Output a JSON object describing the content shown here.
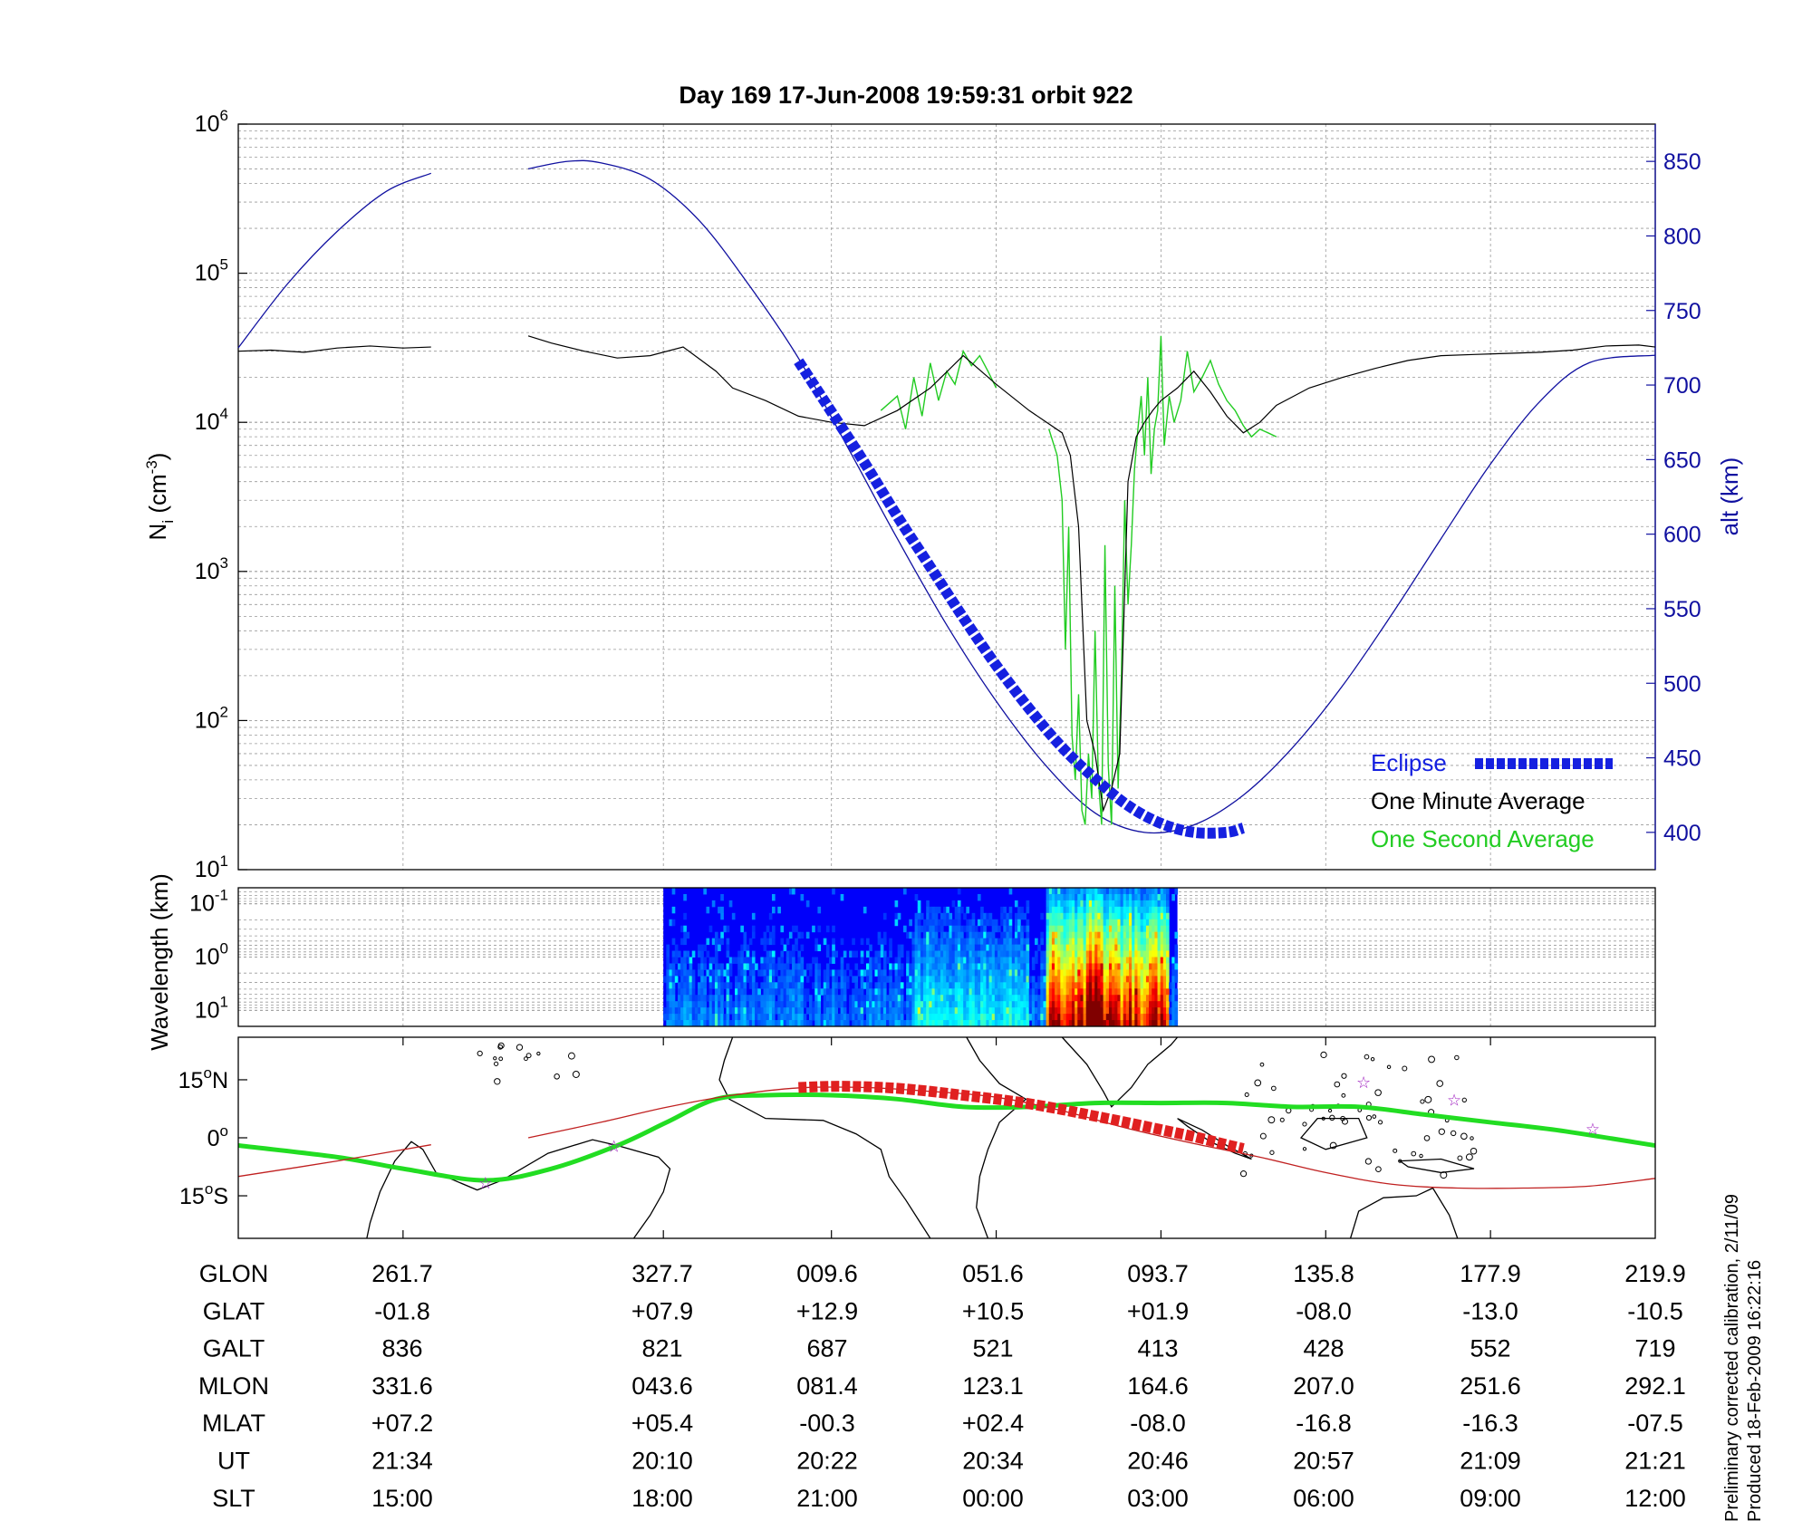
{
  "title": "Day 169  17-Jun-2008 19:59:31   orbit 922",
  "colors": {
    "altitude": "#1010a0",
    "eclipse": "#1520e0",
    "minute": "#000000",
    "second": "#22cc22",
    "track": "#22dd22",
    "ground_path": "#c02020",
    "eclipse_map": "#e02020",
    "stars": "#a020c0",
    "grid": "#999999"
  },
  "chart_data": [
    {
      "type": "line",
      "panel": "density",
      "title": "Day 169  17-Jun-2008 19:59:31   orbit 922",
      "ylabel": "N",
      "ylabel_sub": "i",
      "ylabel_unit": " (cm",
      "ylabel_unit_sup": "-3",
      "ylabel_close": ")",
      "y_scale": "log",
      "ylim": [
        10,
        1000000
      ],
      "yticks": [
        {
          "base": "10",
          "exp": "1"
        },
        {
          "base": "10",
          "exp": "2"
        },
        {
          "base": "10",
          "exp": "3"
        },
        {
          "base": "10",
          "exp": "4"
        },
        {
          "base": "10",
          "exp": "5"
        },
        {
          "base": "10",
          "exp": "6"
        }
      ],
      "y2label": "alt (km)",
      "y2lim": [
        375,
        875
      ],
      "y2ticks": [
        "400",
        "450",
        "500",
        "550",
        "600",
        "650",
        "700",
        "750",
        "800",
        "850"
      ],
      "xlim": [
        0,
        8.6
      ],
      "grid": true,
      "legend_position": "bottom-right",
      "legend": [
        "Eclipse",
        "One Minute Average",
        "One Second Average"
      ],
      "series": [
        {
          "name": "alt (km)",
          "axis": "right",
          "style": "thin",
          "x": [
            0,
            0.3,
            0.6,
            0.9,
            1.17
          ],
          "y": [
            725,
            768,
            803,
            830,
            842
          ]
        },
        {
          "name": "alt (km)",
          "axis": "right",
          "style": "thin",
          "x": [
            1.76,
            2.0,
            2.2,
            2.5,
            2.8,
            3.1,
            3.4,
            3.7,
            4.0,
            4.3,
            4.6,
            4.9,
            5.2,
            5.5,
            5.8,
            6.1,
            6.4,
            6.7,
            7.0,
            7.3,
            7.6,
            7.9,
            8.2,
            8.6
          ],
          "y": [
            845,
            850,
            849,
            838,
            810,
            767,
            718,
            658,
            597,
            539,
            488,
            445,
            413,
            400,
            405,
            425,
            457,
            498,
            546,
            597,
            647,
            689,
            715,
            720
          ]
        },
        {
          "name": "Eclipse",
          "axis": "right",
          "style": "eclipse",
          "x": [
            3.4,
            3.6,
            3.8,
            4.0,
            4.2,
            4.4,
            4.6,
            4.8,
            5.0,
            5.2,
            5.4,
            5.6,
            5.8,
            6.0,
            6.1
          ],
          "y": [
            716,
            682,
            648,
            612,
            578,
            544,
            512,
            483,
            457,
            436,
            418,
            406,
            400,
            400,
            403
          ]
        },
        {
          "name": "One Minute Average",
          "axis": "left",
          "style": "minute",
          "x": [
            0,
            0.2,
            0.4,
            0.6,
            0.8,
            1.0,
            1.17
          ],
          "y": [
            30000,
            30500,
            29500,
            31500,
            32500,
            31500,
            32000
          ]
        },
        {
          "name": "One Minute Average",
          "axis": "left",
          "style": "minute",
          "x": [
            1.76,
            1.9,
            2.1,
            2.3,
            2.5,
            2.7,
            2.9,
            3.0,
            3.2,
            3.4,
            3.6,
            3.8,
            4.0,
            4.2,
            4.4,
            4.6,
            4.8,
            5.0,
            5.05,
            5.1,
            5.15,
            5.2,
            5.25,
            5.3,
            5.35,
            5.4,
            5.45,
            5.5,
            5.55,
            5.6,
            5.7,
            5.8,
            5.9,
            6.0,
            6.1,
            6.2,
            6.3,
            6.5,
            6.7,
            6.9,
            7.1,
            7.3,
            7.5,
            7.7,
            7.9,
            8.1,
            8.3,
            8.5,
            8.6
          ],
          "y": [
            38000,
            34000,
            30000,
            27000,
            28000,
            32000,
            22000,
            17000,
            14000,
            11000,
            10000,
            9500,
            12000,
            17000,
            28000,
            18000,
            12000,
            8500,
            6000,
            2000,
            100,
            60,
            25,
            35,
            60,
            4000,
            8000,
            10000,
            12000,
            14000,
            17000,
            22000,
            16000,
            11000,
            8500,
            10000,
            13000,
            17000,
            20000,
            23000,
            26000,
            28000,
            28500,
            29000,
            29500,
            30500,
            32500,
            33000,
            32000
          ]
        },
        {
          "name": "One Second Average",
          "axis": "left",
          "style": "second",
          "x": [
            3.9,
            4.0,
            4.05,
            4.1,
            4.15,
            4.2,
            4.25,
            4.3,
            4.35,
            4.4,
            4.45,
            4.5,
            4.55,
            4.6
          ],
          "y": [
            12000,
            15000,
            9000,
            20000,
            11000,
            25000,
            14000,
            22000,
            18000,
            30000,
            24000,
            28000,
            22000,
            17000
          ]
        },
        {
          "name": "One Second Average",
          "axis": "left",
          "style": "second",
          "x": [
            4.92,
            4.97,
            5.0,
            5.02,
            5.04,
            5.06,
            5.08,
            5.1,
            5.12,
            5.14,
            5.16,
            5.18,
            5.2,
            5.22,
            5.24,
            5.26,
            5.28,
            5.3,
            5.32,
            5.34,
            5.36,
            5.38,
            5.4,
            5.42,
            5.44,
            5.46,
            5.48,
            5.5,
            5.52,
            5.54,
            5.56,
            5.58,
            5.6,
            5.62,
            5.65,
            5.68,
            5.72,
            5.76,
            5.8,
            5.85,
            5.9,
            5.95,
            6.0,
            6.05,
            6.1,
            6.15,
            6.2,
            6.25,
            6.3
          ],
          "y": [
            9000,
            6000,
            3000,
            300,
            2000,
            80,
            40,
            150,
            25,
            20,
            60,
            30,
            400,
            40,
            20,
            1500,
            50,
            20,
            800,
            35,
            200,
            3000,
            600,
            1500,
            5000,
            9000,
            15000,
            6000,
            20000,
            4500,
            9000,
            12000,
            38000,
            7000,
            15000,
            10000,
            14000,
            30000,
            16000,
            20000,
            26000,
            18000,
            14000,
            12000,
            9500,
            8000,
            9000,
            8500,
            8000
          ]
        }
      ]
    },
    {
      "type": "heatmap",
      "panel": "wavelength",
      "ylabel": "Wavelength (km)",
      "y_scale": "log",
      "yticks": [
        {
          "base": "10",
          "exp": "-1"
        },
        {
          "base": "10",
          "exp": "0"
        },
        {
          "base": "10",
          "exp": "1"
        }
      ],
      "ylim": [
        0.05,
        20
      ],
      "x_range": [
        2.58,
        5.7
      ],
      "xlim": [
        0,
        8.6
      ],
      "grid": true
    },
    {
      "type": "line",
      "panel": "map",
      "yticks": [
        {
          "value": "15",
          "deg": "o",
          "hemi": "N",
          "lat": 15
        },
        {
          "value": "0",
          "deg": "o",
          "hemi": "",
          "lat": 0
        },
        {
          "value": "15",
          "deg": "o",
          "hemi": "S",
          "lat": -15
        }
      ],
      "ylim": [
        -26,
        26
      ],
      "xlim": [
        0,
        8.6
      ],
      "series": [
        {
          "name": "magnetic equator",
          "style": "track",
          "x": [
            0,
            0.6,
            1.0,
            1.5,
            1.9,
            2.3,
            2.6,
            2.9,
            3.2,
            3.6,
            4.0,
            4.4,
            4.8,
            5.2,
            5.6,
            6.0,
            6.4,
            6.8,
            7.2,
            7.6,
            8.0,
            8.6
          ],
          "y": [
            -2,
            -5,
            -8,
            -11,
            -8,
            -2,
            4,
            10,
            11,
            11,
            10,
            8,
            8,
            9,
            9,
            9,
            8,
            8,
            6,
            4,
            2,
            -2
          ]
        },
        {
          "name": "satellite ground track",
          "style": "ground_path",
          "x": [
            0,
            0.6,
            1.17
          ],
          "y": [
            -10,
            -6,
            -1.8
          ]
        },
        {
          "name": "satellite ground track",
          "style": "ground_path",
          "x": [
            1.76,
            2.2,
            2.6,
            3.0,
            3.4,
            3.8,
            4.2,
            4.6,
            5.0,
            5.4,
            5.8,
            6.2,
            6.6,
            7.0,
            7.4,
            7.8,
            8.2,
            8.6
          ],
          "y": [
            0,
            4,
            7.9,
            11,
            12.9,
            13,
            12,
            10.5,
            7,
            2.4,
            -1.5,
            -5,
            -9,
            -12,
            -13,
            -13,
            -12.5,
            -10.5
          ]
        },
        {
          "name": "eclipse",
          "style": "eclipse_map",
          "x": [
            3.4,
            3.6,
            3.8,
            4.0,
            4.2,
            4.4,
            4.6,
            4.8,
            5.0,
            5.2,
            5.4,
            5.6,
            5.8,
            6.0,
            6.1
          ],
          "y": [
            13,
            13.3,
            13.2,
            12.8,
            12,
            11,
            10,
            8.8,
            7.3,
            5.6,
            3.9,
            2.1,
            0.3,
            -1.8,
            -2.8
          ]
        },
        {
          "name": "stars",
          "style": "stars",
          "x": [
            1.5,
            2.28,
            6.83,
            7.38,
            8.22
          ],
          "y": [
            -11.5,
            -2,
            14.5,
            10,
            2.5
          ]
        }
      ]
    }
  ],
  "map_shapes": {
    "americas": [
      [
        0.78,
        -26
      ],
      [
        0.8,
        -22
      ],
      [
        0.86,
        -14
      ],
      [
        0.95,
        -6
      ],
      [
        1.05,
        -1
      ],
      [
        1.12,
        -3
      ],
      [
        1.2,
        -9
      ],
      [
        1.45,
        -13.5
      ],
      [
        1.6,
        -11
      ],
      [
        1.88,
        -4
      ],
      [
        2.15,
        -0.5
      ],
      [
        2.3,
        -2
      ],
      [
        2.55,
        -5
      ],
      [
        2.62,
        -8
      ],
      [
        2.58,
        -14
      ],
      [
        2.5,
        -20
      ],
      [
        2.4,
        -26
      ]
    ],
    "africa": [
      [
        3.0,
        26
      ],
      [
        2.95,
        20
      ],
      [
        2.92,
        15
      ],
      [
        2.98,
        10
      ],
      [
        3.2,
        5
      ],
      [
        3.55,
        4.5
      ],
      [
        3.75,
        1
      ],
      [
        3.9,
        -3
      ],
      [
        3.95,
        -10
      ],
      [
        4.05,
        -16
      ],
      [
        4.2,
        -26
      ]
    ],
    "africa_east": [
      [
        4.55,
        -26
      ],
      [
        4.48,
        -18
      ],
      [
        4.5,
        -10
      ],
      [
        4.55,
        -3
      ],
      [
        4.62,
        4
      ],
      [
        4.78,
        10
      ],
      [
        4.62,
        14
      ],
      [
        4.5,
        20
      ],
      [
        4.42,
        26
      ]
    ],
    "india": [
      [
        5.0,
        26
      ],
      [
        5.15,
        19
      ],
      [
        5.25,
        12
      ],
      [
        5.3,
        8
      ],
      [
        5.42,
        13
      ],
      [
        5.52,
        19
      ],
      [
        5.66,
        24
      ],
      [
        5.7,
        26
      ]
    ],
    "sumatra": [
      [
        5.7,
        5
      ],
      [
        5.85,
        2
      ],
      [
        6.0,
        -2
      ],
      [
        6.15,
        -5.5
      ],
      [
        6.05,
        -4
      ],
      [
        5.9,
        -1
      ],
      [
        5.76,
        3
      ]
    ],
    "australia": [
      [
        6.75,
        -26
      ],
      [
        6.8,
        -19
      ],
      [
        6.95,
        -15.5
      ],
      [
        7.15,
        -15
      ],
      [
        7.25,
        -13
      ],
      [
        7.35,
        -20
      ],
      [
        7.4,
        -26
      ]
    ],
    "png": [
      [
        7.05,
        -6
      ],
      [
        7.3,
        -5.5
      ],
      [
        7.5,
        -8
      ],
      [
        7.3,
        -9
      ],
      [
        7.1,
        -7.5
      ]
    ],
    "borneo": [
      [
        6.55,
        5
      ],
      [
        6.8,
        5
      ],
      [
        6.85,
        0
      ],
      [
        6.6,
        -3
      ],
      [
        6.45,
        0
      ]
    ]
  },
  "table": {
    "rows": [
      {
        "label": "GLON",
        "values": [
          "261.7",
          "327.7",
          "009.6",
          "051.6",
          "093.7",
          "135.8",
          "177.9",
          "219.9"
        ]
      },
      {
        "label": "GLAT",
        "values": [
          "-01.8",
          "+07.9",
          "+12.9",
          "+10.5",
          "+01.9",
          "-08.0",
          "-13.0",
          "-10.5"
        ]
      },
      {
        "label": "GALT",
        "values": [
          "836",
          "821",
          "687",
          "521",
          "413",
          "428",
          "552",
          "719"
        ]
      },
      {
        "label": "MLON",
        "values": [
          "331.6",
          "043.6",
          "081.4",
          "123.1",
          "164.6",
          "207.0",
          "251.6",
          "292.1"
        ]
      },
      {
        "label": "MLAT",
        "values": [
          "+07.2",
          "+05.4",
          "-00.3",
          "+02.4",
          "-08.0",
          "-16.8",
          "-16.3",
          "-07.5"
        ]
      },
      {
        "label": "UT",
        "values": [
          "21:34",
          "20:10",
          "20:22",
          "20:34",
          "20:46",
          "20:57",
          "21:09",
          "21:21"
        ]
      },
      {
        "label": "SLT",
        "values": [
          "15:00",
          "18:00",
          "21:00",
          "00:00",
          "03:00",
          "06:00",
          "09:00",
          "12:00"
        ]
      }
    ]
  },
  "notes": [
    "Preliminary corrected calibration, 2/11/09",
    "Produced 18-Feb-2009 16:22:16"
  ]
}
